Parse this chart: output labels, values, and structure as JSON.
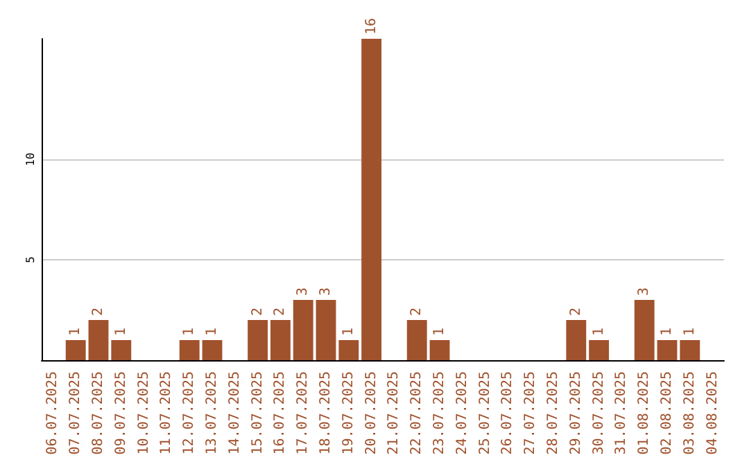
{
  "chart_data": {
    "type": "bar",
    "categories": [
      "06.07.2025",
      "07.07.2025",
      "08.07.2025",
      "09.07.2025",
      "10.07.2025",
      "11.07.2025",
      "12.07.2025",
      "13.07.2025",
      "14.07.2025",
      "15.07.2025",
      "16.07.2025",
      "17.07.2025",
      "18.07.2025",
      "19.07.2025",
      "20.07.2025",
      "21.07.2025",
      "22.07.2025",
      "23.07.2025",
      "24.07.2025",
      "25.07.2025",
      "26.07.2025",
      "27.07.2025",
      "28.07.2025",
      "29.07.2025",
      "30.07.2025",
      "31.07.2025",
      "01.08.2025",
      "02.08.2025",
      "03.08.2025",
      "04.08.2025"
    ],
    "values": [
      0,
      1,
      2,
      1,
      0,
      0,
      1,
      1,
      0,
      2,
      2,
      3,
      3,
      1,
      16,
      0,
      2,
      1,
      0,
      0,
      0,
      0,
      0,
      2,
      1,
      0,
      3,
      1,
      1,
      0
    ],
    "value_labels": [
      null,
      "1",
      "2",
      "1",
      null,
      null,
      "1",
      "1",
      null,
      "2",
      "2",
      "3",
      "3",
      "1",
      "16",
      null,
      "2",
      "1",
      null,
      null,
      null,
      null,
      null,
      "2",
      "1",
      null,
      "3",
      "1",
      "1",
      null
    ],
    "color": "#a0522d",
    "ylim": [
      0,
      16
    ],
    "yticks": [
      5,
      10
    ],
    "grid": "y"
  }
}
